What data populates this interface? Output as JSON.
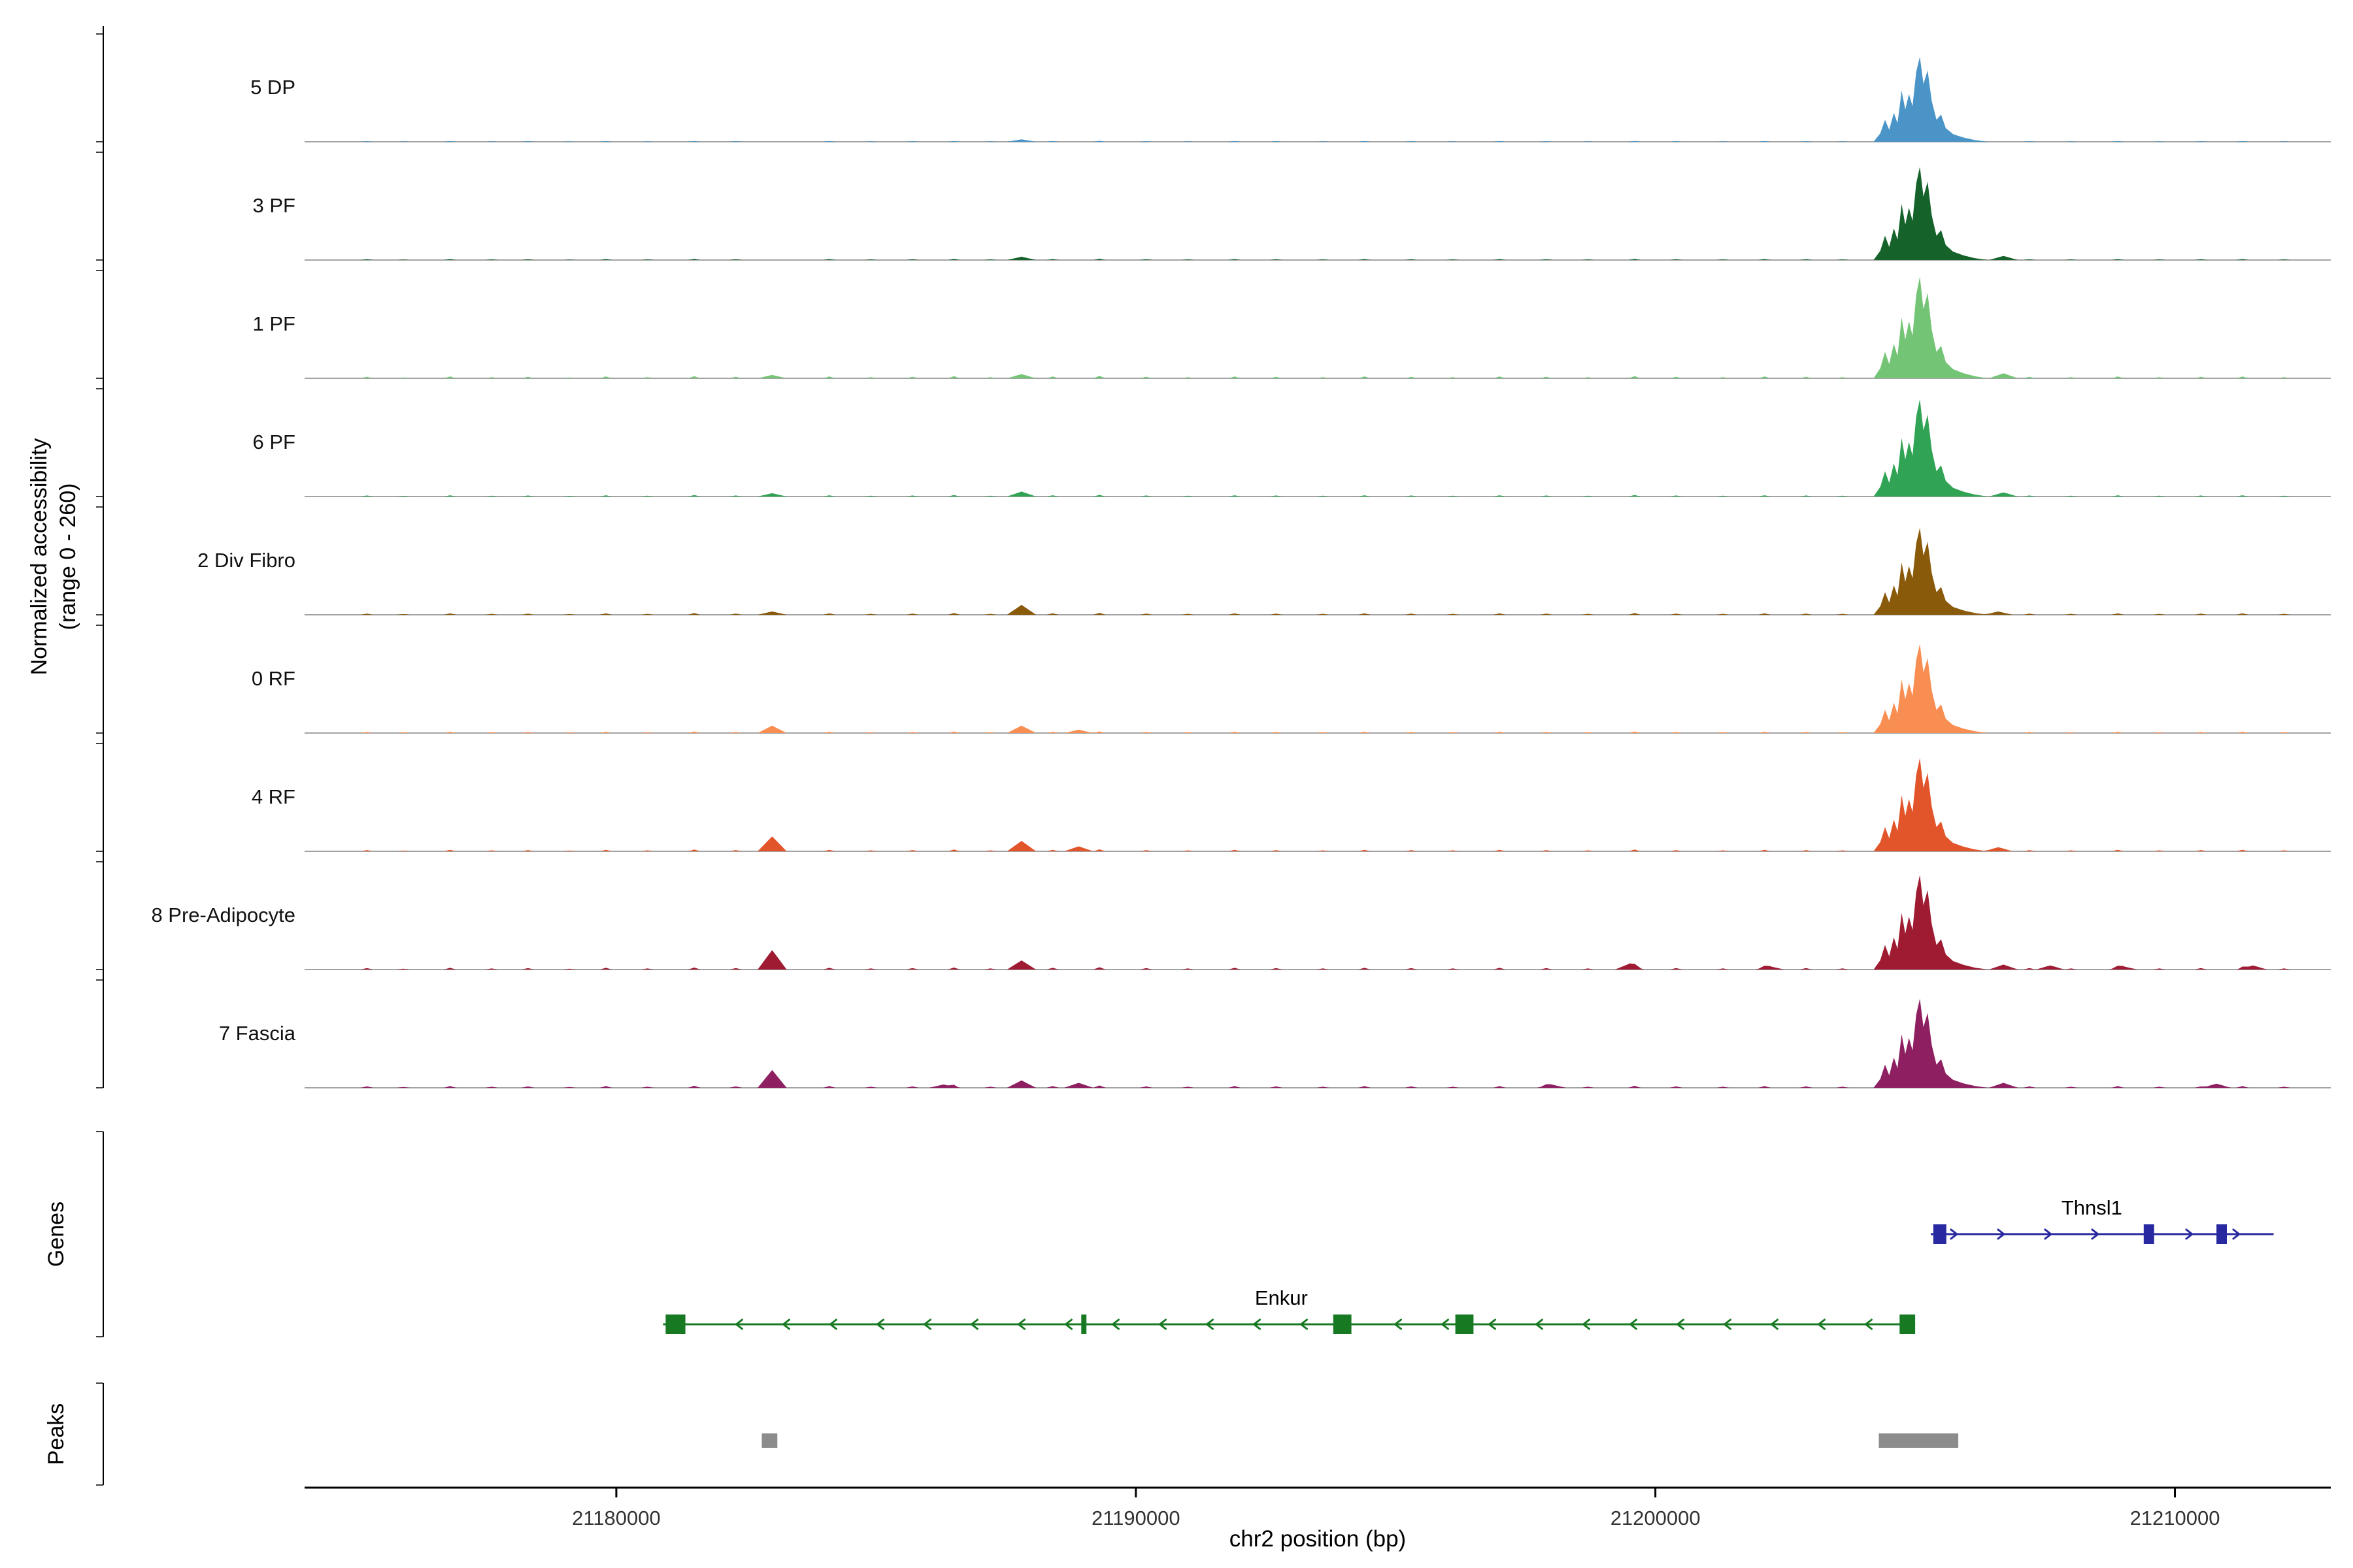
{
  "labels": {
    "y_line1": "Normalized accessibility",
    "y_line2": "(range 0 - 260)",
    "genes": "Genes",
    "peaks": "Peaks",
    "x": "chr2 position (bp)"
  },
  "chart_data": {
    "type": "area",
    "title": "",
    "xlabel": "chr2 position (bp)",
    "ylabel": "Normalized accessibility (range 0 - 260)",
    "x_range": [
      21174000,
      21213000
    ],
    "x_ticks": [
      21180000,
      21190000,
      21200000,
      21210000
    ],
    "y_max": 260,
    "main_peak_profile": [
      [
        21204200,
        0
      ],
      [
        21204330,
        0.1
      ],
      [
        21204420,
        0.26
      ],
      [
        21204500,
        0.14
      ],
      [
        21204590,
        0.34
      ],
      [
        21204660,
        0.22
      ],
      [
        21204740,
        0.6
      ],
      [
        21204810,
        0.38
      ],
      [
        21204880,
        0.56
      ],
      [
        21204950,
        0.42
      ],
      [
        21205020,
        0.82
      ],
      [
        21205090,
        1.0
      ],
      [
        21205160,
        0.68
      ],
      [
        21205240,
        0.84
      ],
      [
        21205320,
        0.48
      ],
      [
        21205410,
        0.26
      ],
      [
        21205500,
        0.32
      ],
      [
        21205590,
        0.16
      ],
      [
        21205730,
        0.09
      ],
      [
        21205930,
        0.05
      ],
      [
        21206150,
        0.02
      ],
      [
        21206400,
        0
      ]
    ],
    "noise_bumps": [
      [
        21175200,
        0.5
      ],
      [
        21175900,
        0.3
      ],
      [
        21176800,
        0.6
      ],
      [
        21177600,
        0.4
      ],
      [
        21178300,
        0.5
      ],
      [
        21179100,
        0.3
      ],
      [
        21179800,
        0.6
      ],
      [
        21180600,
        0.4
      ],
      [
        21181500,
        0.7
      ],
      [
        21182300,
        0.5
      ],
      [
        21184100,
        0.6
      ],
      [
        21184900,
        0.4
      ],
      [
        21185700,
        0.5
      ],
      [
        21186500,
        0.7
      ],
      [
        21187200,
        0.4
      ],
      [
        21188400,
        0.6
      ],
      [
        21189300,
        0.8
      ],
      [
        21190200,
        0.5
      ],
      [
        21191000,
        0.4
      ],
      [
        21191900,
        0.6
      ],
      [
        21192700,
        0.5
      ],
      [
        21193600,
        0.4
      ],
      [
        21194400,
        0.6
      ],
      [
        21195300,
        0.5
      ],
      [
        21196100,
        0.4
      ],
      [
        21197000,
        0.6
      ],
      [
        21197900,
        0.5
      ],
      [
        21198700,
        0.4
      ],
      [
        21199600,
        0.7
      ],
      [
        21200400,
        0.5
      ],
      [
        21201300,
        0.4
      ],
      [
        21202100,
        0.6
      ],
      [
        21202900,
        0.5
      ],
      [
        21203600,
        0.4
      ],
      [
        21207200,
        0.5
      ],
      [
        21208000,
        0.4
      ],
      [
        21208900,
        0.6
      ],
      [
        21209700,
        0.4
      ],
      [
        21210500,
        0.5
      ],
      [
        21211300,
        0.6
      ],
      [
        21212100,
        0.4
      ]
    ],
    "tracks": [
      {
        "label": "5 DP",
        "color": "#4a94c8",
        "peak_scale": 205,
        "noise_amp": 3,
        "features": [
          [
            21187800,
            6
          ]
        ]
      },
      {
        "label": "3 PF",
        "color": "#15632b",
        "peak_scale": 225,
        "noise_amp": 4,
        "features": [
          [
            21187800,
            8
          ],
          [
            21206700,
            10
          ]
        ]
      },
      {
        "label": "1 PF",
        "color": "#74c476",
        "peak_scale": 245,
        "noise_amp": 7,
        "features": [
          [
            21183000,
            8
          ],
          [
            21187800,
            10
          ],
          [
            21206700,
            12
          ]
        ]
      },
      {
        "label": "6 PF",
        "color": "#31a354",
        "peak_scale": 235,
        "noise_amp": 5,
        "features": [
          [
            21183000,
            8
          ],
          [
            21187800,
            12
          ],
          [
            21206700,
            10
          ]
        ]
      },
      {
        "label": "2 Div Fibro",
        "color": "#8a5a0b",
        "peak_scale": 210,
        "noise_amp": 6,
        "features": [
          [
            21183000,
            8
          ],
          [
            21187800,
            24
          ],
          [
            21206600,
            8
          ]
        ]
      },
      {
        "label": "0 RF",
        "color": "#f98e52",
        "peak_scale": 215,
        "noise_amp": 5,
        "features": [
          [
            21183000,
            18
          ],
          [
            21187800,
            18
          ],
          [
            21188900,
            8
          ]
        ]
      },
      {
        "label": "4 RF",
        "color": "#e2552b",
        "peak_scale": 225,
        "noise_amp": 6,
        "features": [
          [
            21183000,
            36
          ],
          [
            21187800,
            25
          ],
          [
            21188900,
            12
          ],
          [
            21206600,
            10
          ]
        ]
      },
      {
        "label": "8 Pre-Adipocyte",
        "color": "#9e1b32",
        "peak_scale": 228,
        "noise_amp": 7,
        "features": [
          [
            21183000,
            47
          ],
          [
            21187800,
            22
          ],
          [
            21199500,
            14
          ],
          [
            21202200,
            8
          ],
          [
            21206700,
            12
          ],
          [
            21207600,
            10
          ],
          [
            21209000,
            8
          ],
          [
            21211500,
            10
          ]
        ]
      },
      {
        "label": "7 Fascia",
        "color": "#8e1f61",
        "peak_scale": 215,
        "noise_amp": 7,
        "features": [
          [
            21183000,
            43
          ],
          [
            21186300,
            8
          ],
          [
            21187800,
            18
          ],
          [
            21188900,
            12
          ],
          [
            21198000,
            8
          ],
          [
            21206700,
            12
          ],
          [
            21210800,
            10
          ]
        ]
      }
    ],
    "genes": [
      {
        "name": "Thnsl1",
        "color": "#2828a0",
        "strand": "+",
        "row": 0,
        "start": 21205300,
        "end": 21211900,
        "label_bp": 21208400,
        "exons": [
          [
            21205350,
            21205600
          ],
          [
            21209400,
            21209600
          ],
          [
            21210800,
            21211000
          ]
        ]
      },
      {
        "name": "Enkur",
        "color": "#177a22",
        "strand": "-",
        "row": 1,
        "start": 21180900,
        "end": 21205000,
        "label_bp": 21192800,
        "exons": [
          [
            21180950,
            21181330
          ],
          [
            21188950,
            21189050
          ],
          [
            21193800,
            21194150
          ],
          [
            21196150,
            21196500
          ],
          [
            21204700,
            21205000
          ]
        ]
      }
    ],
    "peaks": [
      [
        21182800,
        21183100
      ],
      [
        21204300,
        21205830
      ]
    ],
    "peak_color": "#8c8c8c"
  }
}
